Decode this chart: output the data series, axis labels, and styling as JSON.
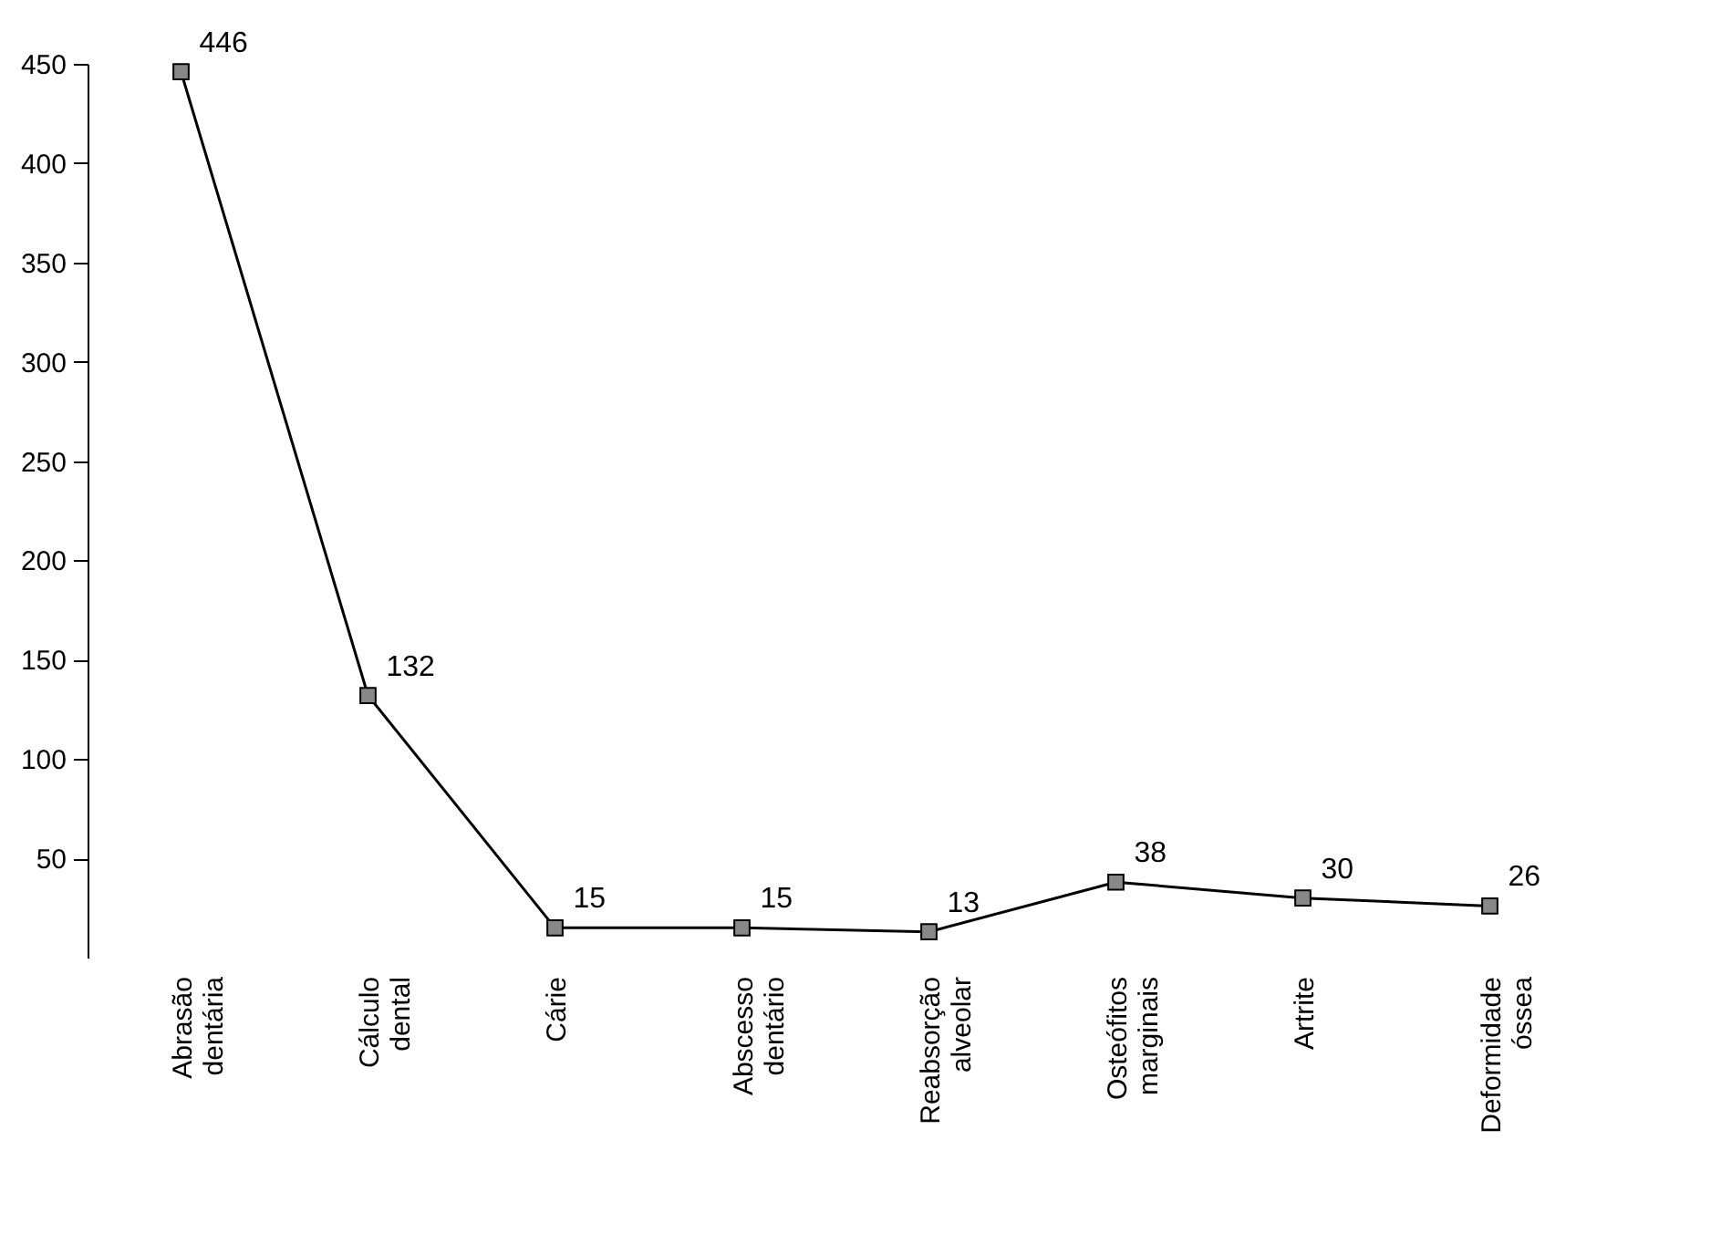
{
  "chart_data": {
    "type": "line",
    "categories": [
      "Abrasão dentária",
      "Cálculo dental",
      "Cárie",
      "Abscesso dentário",
      "Reabsorção alveolar",
      "Osteófitos marginais",
      "Artrite",
      "Deformidade óssea"
    ],
    "series": [
      {
        "color": "#000000",
        "values": [
          446,
          132,
          15,
          15,
          13,
          38,
          30,
          26
        ]
      }
    ],
    "ylim": [
      0,
      450
    ],
    "yticks": [
      50,
      100,
      150,
      200,
      250,
      300,
      350,
      400,
      450
    ],
    "marker": "square",
    "data_labels": true
  }
}
